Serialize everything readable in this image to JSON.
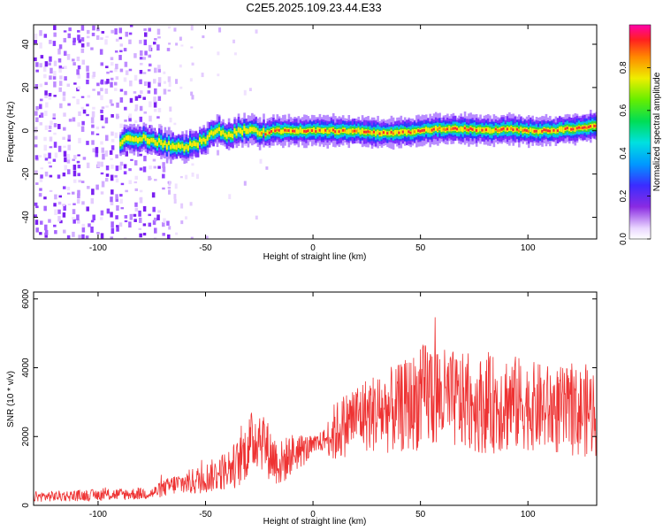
{
  "title": "C2E5.2025.109.23.44.E33",
  "chart_data": [
    {
      "type": "heatmap",
      "xlabel": "Height of straight line (km)",
      "ylabel": "Frequency (Hz)",
      "xlim": [
        -130,
        132
      ],
      "ylim": [
        -50,
        49
      ],
      "x_ticks": [
        -100,
        -50,
        0,
        50,
        100
      ],
      "x_tick_labels": [
        "-100",
        "-50",
        "0",
        "50",
        "100"
      ],
      "y_ticks": [
        -40,
        -20,
        0,
        20,
        40
      ],
      "y_tick_labels": [
        "-40",
        "-20",
        "0",
        "20",
        "40"
      ],
      "colorbar": {
        "label": "Normalized spectral amplitude",
        "range": [
          0,
          1
        ],
        "ticks": [
          0.0,
          0.2,
          0.4,
          0.6,
          0.8
        ],
        "tick_labels": [
          "0.0",
          "0.2",
          "0.4",
          "0.6",
          "0.8"
        ]
      },
      "ridge": {
        "x": [
          -90,
          -80,
          -70,
          -60,
          -55,
          -50,
          -45,
          -40,
          -35,
          -30,
          -25,
          -20,
          -10,
          0,
          10,
          20,
          30,
          40,
          50,
          60,
          70,
          80,
          90,
          100,
          110,
          120,
          132
        ],
        "freq": [
          -5,
          -3,
          -6,
          -8,
          -6,
          -4,
          1,
          -3,
          0,
          1,
          -1,
          0,
          0,
          0,
          0,
          0,
          -1,
          -1,
          0,
          1,
          1,
          0,
          1,
          0,
          0,
          1,
          2
        ]
      }
    },
    {
      "type": "line",
      "xlabel": "Height of straight line (km)",
      "ylabel": "SNR (10 * v/v)",
      "xlim": [
        -130,
        132
      ],
      "ylim": [
        0,
        6200
      ],
      "x_ticks": [
        -100,
        -50,
        0,
        50,
        100
      ],
      "x_tick_labels": [
        "-100",
        "-50",
        "0",
        "50",
        "100"
      ],
      "y_ticks": [
        0,
        2000,
        4000,
        6000
      ],
      "y_tick_labels": [
        "0",
        "2000",
        "4000",
        "6000"
      ],
      "color": "#ee3333",
      "envelope": {
        "x": [
          -130,
          -100,
          -75,
          -65,
          -55,
          -45,
          -35,
          -30,
          -25,
          -20,
          -15,
          -10,
          -5,
          0,
          5,
          10,
          20,
          30,
          40,
          50,
          55,
          60,
          70,
          80,
          90,
          100,
          110,
          120,
          132
        ],
        "y": [
          250,
          300,
          350,
          600,
          700,
          900,
          1200,
          1700,
          2100,
          1500,
          1200,
          1500,
          1600,
          1700,
          1900,
          2100,
          2600,
          2700,
          2800,
          3100,
          3300,
          3100,
          3000,
          2900,
          3000,
          2900,
          2800,
          2700,
          2800
        ],
        "spread": [
          150,
          170,
          180,
          300,
          400,
          500,
          700,
          900,
          1000,
          800,
          700,
          600,
          500,
          300,
          300,
          900,
          1000,
          1200,
          1300,
          1500,
          1700,
          1500,
          1400,
          1400,
          1500,
          1300,
          1300,
          1300,
          1400
        ]
      }
    }
  ]
}
